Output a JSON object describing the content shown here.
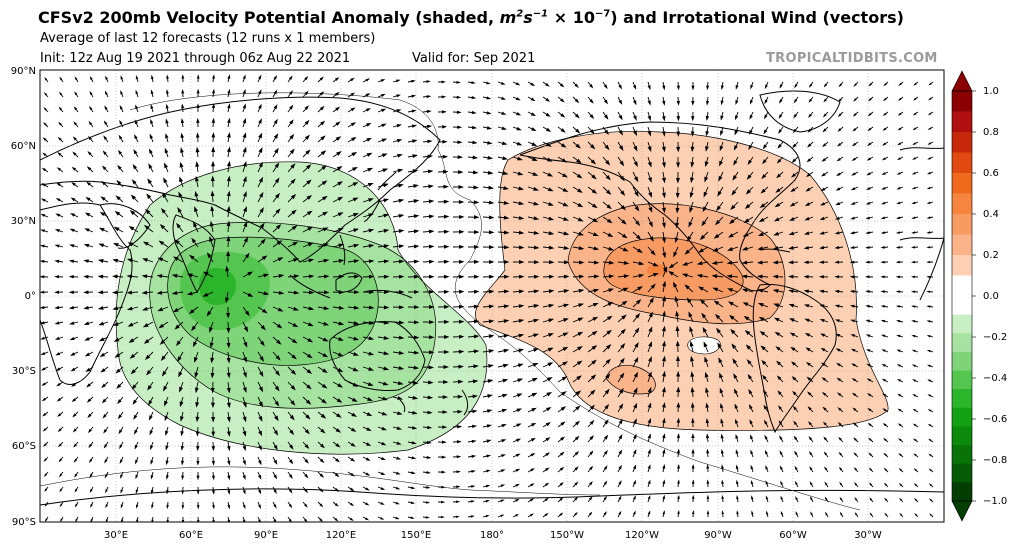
{
  "header": {
    "title_main": "CFSv2 200mb Velocity Potential Anomaly (shaded, ",
    "title_units_m": "m",
    "title_units_s": "s",
    "title_units_exp1": "2",
    "title_units_exp2": "−1",
    "title_units_mult": " × 10",
    "title_units_exp3": "−7",
    "title_tail": ") and Irrotational Wind (vectors)",
    "subtitle": "Average of last 12 forecasts (12 runs x 1 members)",
    "init": "Init: 12z Aug 19 2021 through 06z Aug 22 2021",
    "valid": "Valid for: Sep 2021",
    "brand": "TROPICALTIDBITS.COM"
  },
  "map": {
    "lat_labels": [
      "90°N",
      "60°N",
      "30°N",
      "0°",
      "30°S",
      "60°S",
      "90°S"
    ],
    "lon_labels": [
      "30°E",
      "60°E",
      "90°E",
      "120°E",
      "150°E",
      "180°",
      "150°W",
      "120°W",
      "90°W",
      "60°W",
      "30°W"
    ]
  },
  "colorbar": {
    "labels": [
      "1.0",
      "0.8",
      "0.6",
      "0.4",
      "0.2",
      "0.0",
      "−0.2",
      "−0.4",
      "−0.6",
      "−0.8",
      "−1.0"
    ],
    "colors_positive": [
      "#8b0000",
      "#b01010",
      "#c8280a",
      "#e04a10",
      "#f06a1e",
      "#f68540",
      "#f89b62",
      "#fbb38a",
      "#fdd0b4",
      "#ffffff"
    ],
    "colors_negative": [
      "#ffffff",
      "#c8efc4",
      "#a6e3a0",
      "#7fd47a",
      "#54c650",
      "#2bb52a",
      "#11a011",
      "#0c8a0c",
      "#087308",
      "#055c05",
      "#033f03"
    ]
  },
  "contour_colors": {
    "neg_outer": "#c8efc4",
    "neg_mid": "#a6e3a0",
    "neg_inner": "#7fd47a",
    "neg_core": "#54c650",
    "neg_peak": "#2bb52a",
    "pos_outer": "#fdd0b4",
    "pos_mid": "#fbb38a",
    "pos_inner": "#f89b62",
    "pos_peak": "#f68540"
  }
}
